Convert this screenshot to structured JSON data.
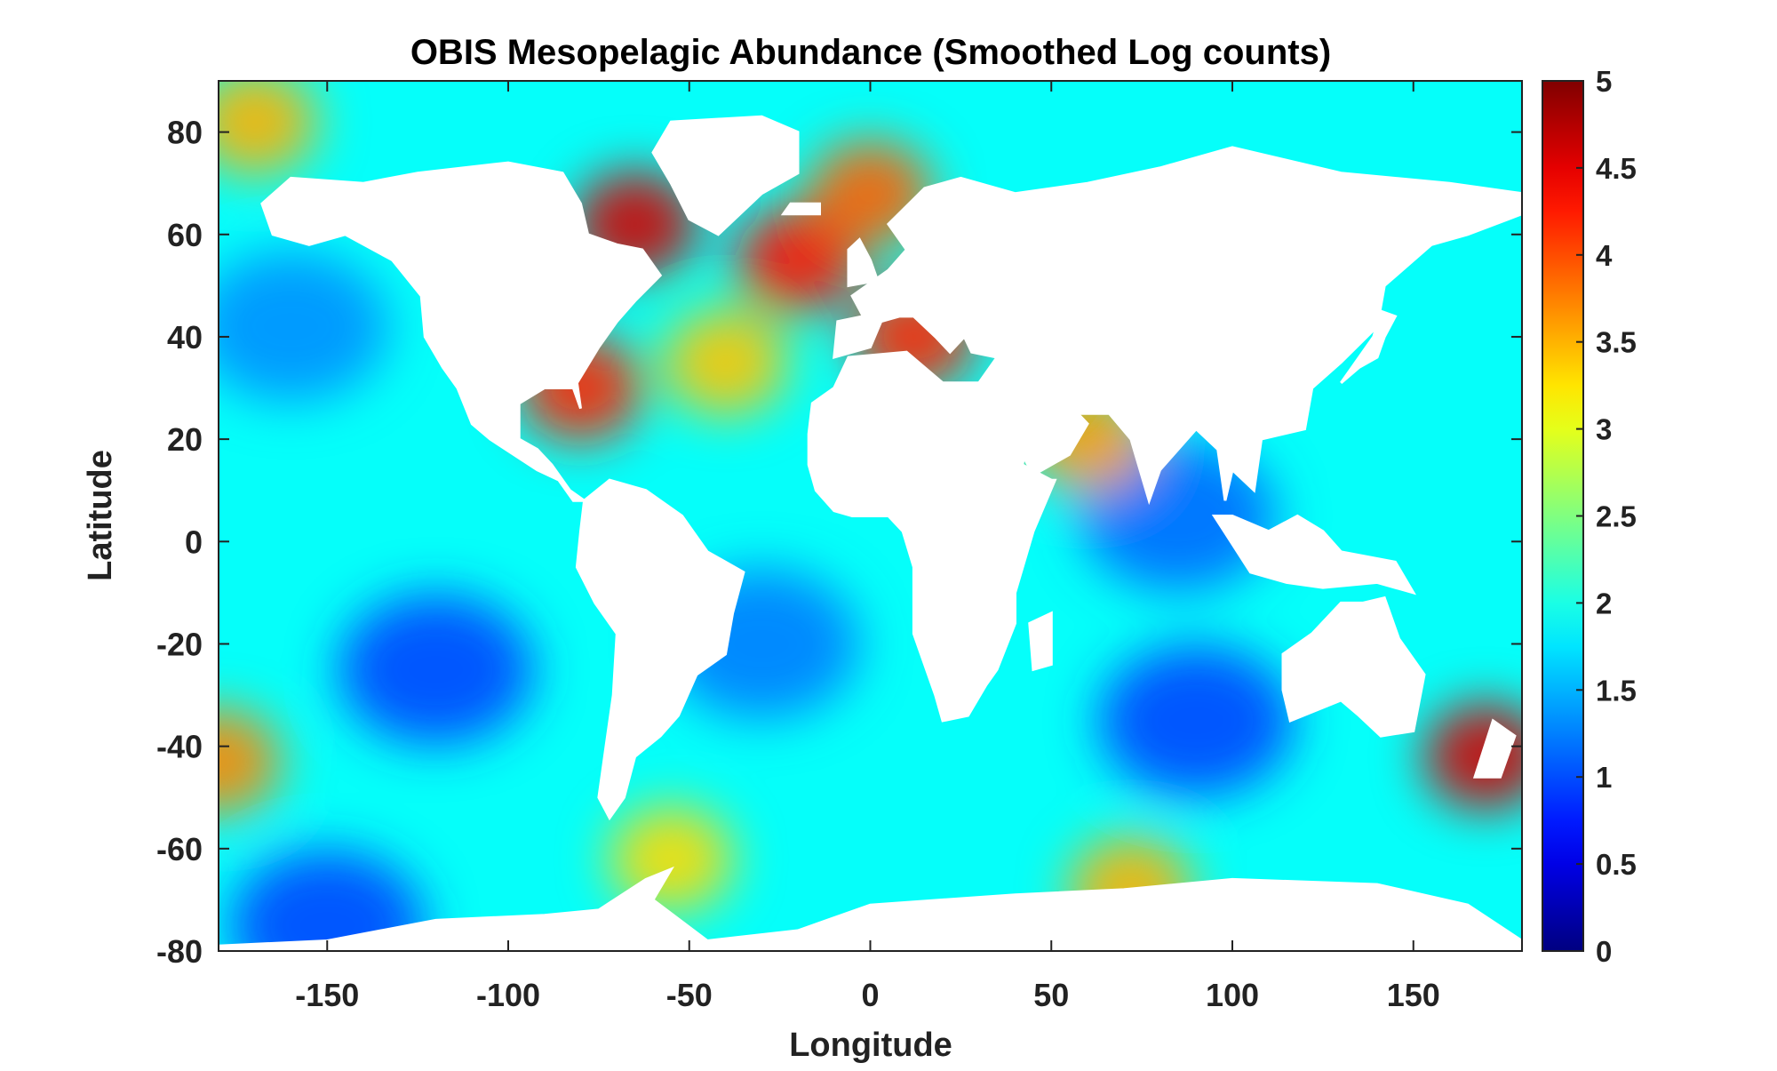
{
  "chart_data": {
    "type": "heatmap",
    "title": "OBIS Mesopelagic Abundance (Smoothed Log counts)",
    "xlabel": "Longitude",
    "ylabel": "Latitude",
    "xlim": [
      -180,
      180
    ],
    "ylim": [
      -80,
      90
    ],
    "x_ticks": [
      -150,
      -100,
      -50,
      0,
      50,
      100,
      150
    ],
    "x_tick_labels": [
      "-150",
      "-100",
      "-50",
      "0",
      "50",
      "100",
      "150"
    ],
    "y_ticks": [
      80,
      60,
      40,
      20,
      0,
      -20,
      -40,
      -60,
      -80
    ],
    "y_tick_labels": [
      "80",
      "60",
      "40",
      "20",
      "0",
      "-20",
      "-40",
      "-60",
      "-80"
    ],
    "colorbar": {
      "colormap": "jet",
      "range": [
        0,
        5
      ],
      "ticks": [
        0,
        0.5,
        1,
        1.5,
        2,
        2.5,
        3,
        3.5,
        4,
        4.5,
        5
      ],
      "tick_labels": [
        "0",
        "0.5",
        "1",
        "1.5",
        "2",
        "2.5",
        "3",
        "3.5",
        "4",
        "4.5",
        "5"
      ]
    },
    "land_color": "#ffffff",
    "grid": false,
    "hotspots": [
      {
        "lon": -65,
        "lat": 62,
        "value": 4.6
      },
      {
        "lon": -80,
        "lat": 30,
        "value": 4.2
      },
      {
        "lon": -20,
        "lat": 55,
        "value": 4.3
      },
      {
        "lon": 0,
        "lat": 68,
        "value": 3.9
      },
      {
        "lon": 12,
        "lat": 40,
        "value": 4.2
      },
      {
        "lon": 170,
        "lat": -42,
        "value": 4.6
      },
      {
        "lon": 60,
        "lat": 20,
        "value": 3.6
      },
      {
        "lon": -40,
        "lat": 35,
        "value": 3.4
      },
      {
        "lon": -170,
        "lat": 82,
        "value": 3.5
      },
      {
        "lon": -180,
        "lat": -43,
        "value": 3.7
      },
      {
        "lon": -55,
        "lat": -62,
        "value": 3.3
      },
      {
        "lon": 72,
        "lat": -68,
        "value": 3.5
      }
    ],
    "lows": [
      {
        "lon": -120,
        "lat": -25,
        "value": 0.9
      },
      {
        "lon": 90,
        "lat": -35,
        "value": 0.9
      },
      {
        "lon": 85,
        "lat": 5,
        "value": 1.1
      },
      {
        "lon": -160,
        "lat": 42,
        "value": 1.3
      },
      {
        "lon": -150,
        "lat": -75,
        "value": 0.9
      },
      {
        "lon": -30,
        "lat": -20,
        "value": 1.2
      }
    ],
    "background_value": 1.9
  }
}
